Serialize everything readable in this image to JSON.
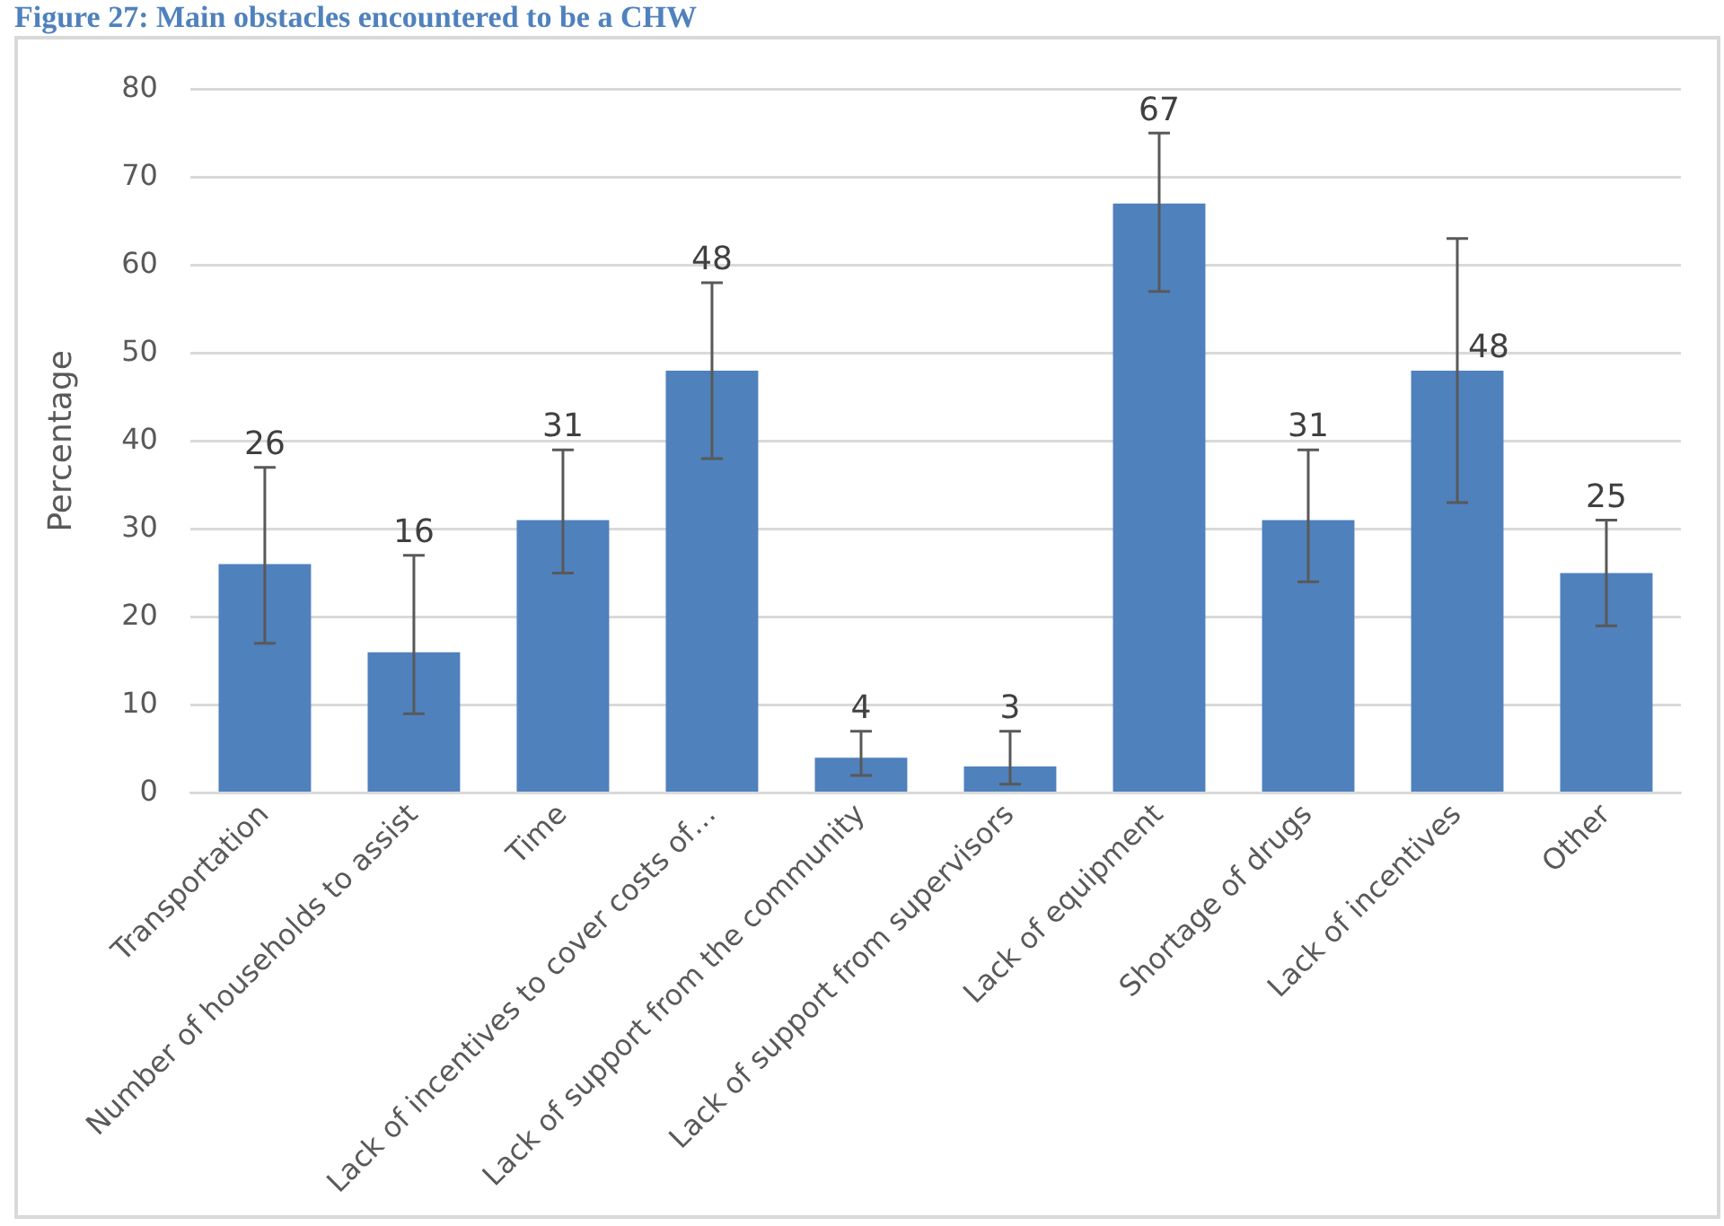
{
  "chart_data": {
    "type": "bar",
    "title": "Figure 27: Main obstacles encountered to be a CHW",
    "ylabel": "Percentage",
    "categories": [
      "Transportation",
      "Number of households to assist",
      "Time",
      "Lack of incentives to cover costs of…",
      "Lack of support from the community",
      "Lack of support from supervisors",
      "Lack of equipment",
      "Shortage of drugs",
      "Lack of incentives",
      "Other"
    ],
    "values": [
      26,
      16,
      31,
      48,
      4,
      3,
      67,
      31,
      48,
      25
    ],
    "errors": [
      [
        17,
        37
      ],
      [
        9,
        27
      ],
      [
        25,
        39
      ],
      [
        38,
        58
      ],
      [
        2,
        7
      ],
      [
        1,
        7
      ],
      [
        57,
        75
      ],
      [
        24,
        39
      ],
      [
        33,
        63
      ],
      [
        19,
        31
      ]
    ],
    "color": "#4f81bd",
    "ylim": [
      0,
      80
    ],
    "yticks": [
      0,
      10,
      20,
      30,
      40,
      50,
      60,
      70,
      80
    ],
    "grid": "y",
    "data_labels": true,
    "legend": false
  }
}
